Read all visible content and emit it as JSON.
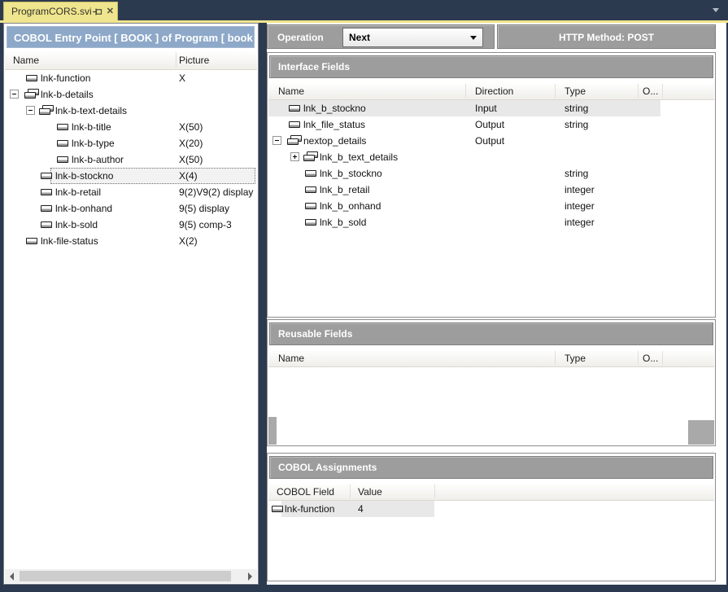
{
  "tab": {
    "title": "ProgramCORS.svi",
    "close_glyph": "✕"
  },
  "left_panel": {
    "header": "COBOL Entry Point [ BOOK ] of Program [ book",
    "columns": [
      "Name",
      "Picture"
    ],
    "rows": [
      {
        "name": "lnk-function",
        "picture": "X",
        "level": 1,
        "kind": "leaf"
      },
      {
        "name": "lnk-b-details",
        "picture": "",
        "level": 1,
        "kind": "group",
        "expander": "minus"
      },
      {
        "name": "lnk-b-text-details",
        "picture": "",
        "level": 2,
        "kind": "group",
        "expander": "minus"
      },
      {
        "name": "lnk-b-title",
        "picture": "X(50)",
        "level": 3,
        "kind": "leaf"
      },
      {
        "name": "lnk-b-type",
        "picture": "X(20)",
        "level": 3,
        "kind": "leaf"
      },
      {
        "name": "lnk-b-author",
        "picture": "X(50)",
        "level": 3,
        "kind": "leaf"
      },
      {
        "name": "lnk-b-stockno",
        "picture": "X(4)",
        "level": 2,
        "kind": "leaf",
        "selected": true
      },
      {
        "name": "lnk-b-retail",
        "picture": "9(2)V9(2) display",
        "level": 2,
        "kind": "leaf"
      },
      {
        "name": "lnk-b-onhand",
        "picture": "9(5) display",
        "level": 2,
        "kind": "leaf"
      },
      {
        "name": "lnk-b-sold",
        "picture": "9(5) comp-3",
        "level": 2,
        "kind": "leaf"
      },
      {
        "name": "lnk-file-status",
        "picture": "X(2)",
        "level": 1,
        "kind": "leaf"
      }
    ]
  },
  "operation_bar": {
    "label": "Operation",
    "selected_value": "Next",
    "http_method": "HTTP Method: POST"
  },
  "interface_fields": {
    "title": "Interface Fields",
    "columns": [
      "Name",
      "Direction",
      "Type",
      "O..."
    ],
    "rows": [
      {
        "name": "lnk_b_stockno",
        "direction": "Input",
        "type": "string",
        "level": 1,
        "kind": "leaf",
        "selected": true
      },
      {
        "name": "lnk_file_status",
        "direction": "Output",
        "type": "string",
        "level": 1,
        "kind": "leaf"
      },
      {
        "name": "nextop_details",
        "direction": "Output",
        "type": "",
        "level": 1,
        "kind": "group",
        "expander": "minus"
      },
      {
        "name": "lnk_b_text_details",
        "direction": "",
        "type": "",
        "level": 2,
        "kind": "group",
        "expander": "plus"
      },
      {
        "name": "lnk_b_stockno",
        "direction": "",
        "type": "string",
        "level": 2,
        "kind": "leaf"
      },
      {
        "name": "lnk_b_retail",
        "direction": "",
        "type": "integer",
        "level": 2,
        "kind": "leaf"
      },
      {
        "name": "lnk_b_onhand",
        "direction": "",
        "type": "integer",
        "level": 2,
        "kind": "leaf"
      },
      {
        "name": "lnk_b_sold",
        "direction": "",
        "type": "integer",
        "level": 2,
        "kind": "leaf"
      }
    ]
  },
  "reusable_fields": {
    "title": "Reusable Fields",
    "columns": [
      "Name",
      "Type",
      "O..."
    ],
    "rows": []
  },
  "cobol_assignments": {
    "title": "COBOL Assignments",
    "columns": [
      "COBOL Field",
      "Value"
    ],
    "rows": [
      {
        "field": "lnk-function",
        "value": "4",
        "selected": true
      }
    ]
  },
  "colors": {
    "frame_navy": "#2c3a50",
    "tab_yellow": "#efe58e",
    "entry_header_blue": "#8da8c8",
    "section_bar_gray": "#9d9d9d",
    "selection_gray": "#e8e8e8"
  }
}
